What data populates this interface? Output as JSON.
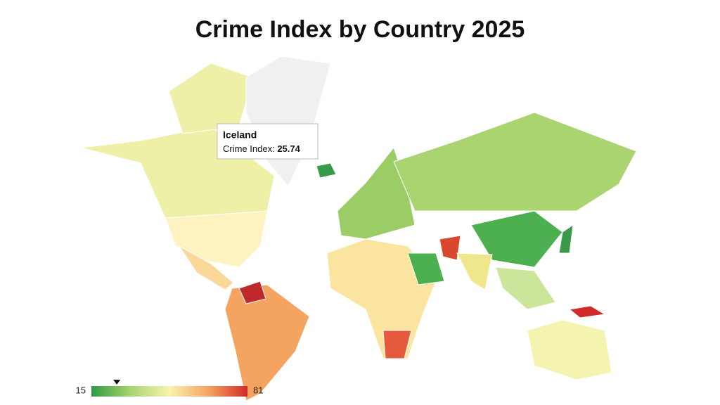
{
  "header": {
    "title": "Crime Index by Country 2025"
  },
  "tooltip": {
    "country": "Iceland",
    "label": "Crime Index:",
    "value": 25.74
  },
  "legend": {
    "min": 15,
    "max": 81,
    "colors": [
      "#2e9a43",
      "#a8d46f",
      "#f7f3b0",
      "#f4a460",
      "#d22a2a"
    ]
  }
}
